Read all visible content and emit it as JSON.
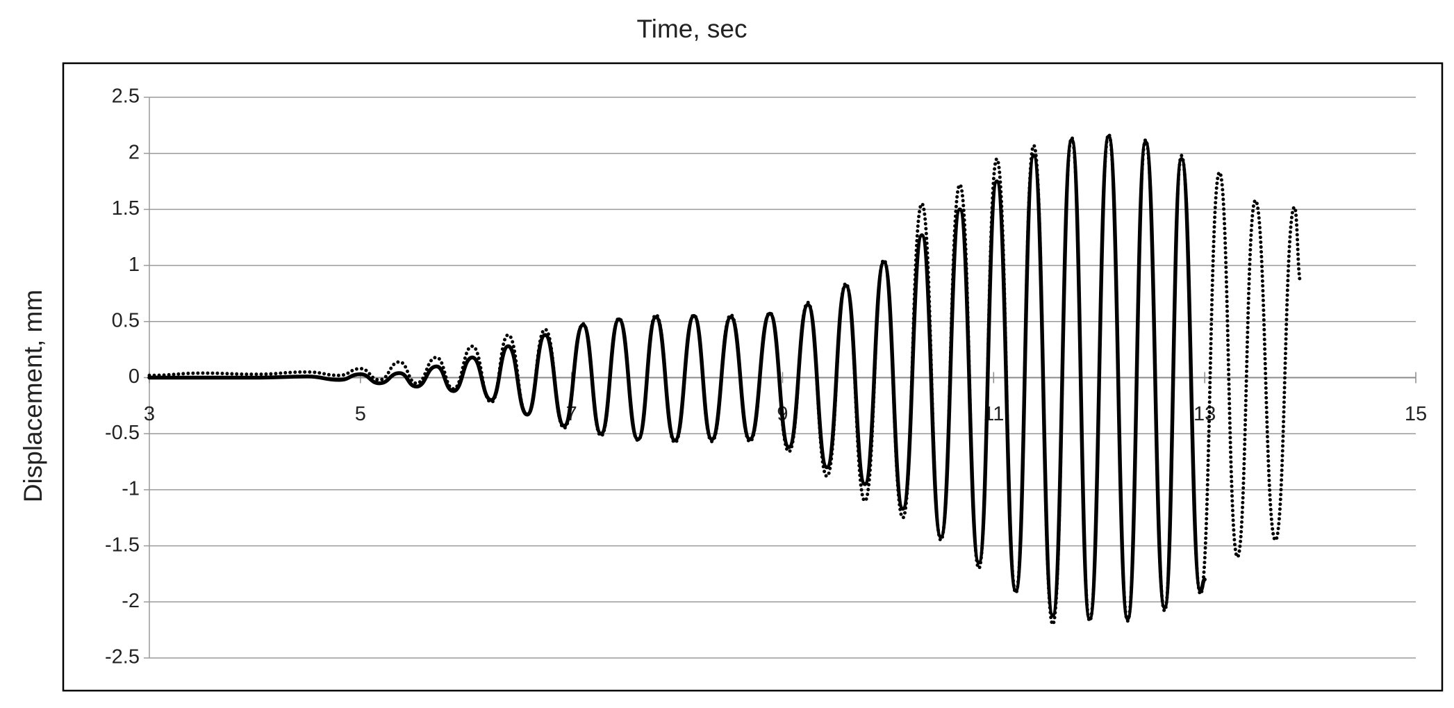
{
  "chart_data": {
    "type": "line",
    "title": "Time, sec",
    "y_label": "Displacement, mm",
    "xlim": [
      3,
      15
    ],
    "xticks": [
      3,
      5,
      7,
      9,
      11,
      13,
      15
    ],
    "ylim": [
      -2.5,
      2.5
    ],
    "yticks": [
      -2.5,
      -2,
      -1.5,
      -1,
      -0.5,
      0,
      0.5,
      1,
      1.5,
      2,
      2.5
    ],
    "grid": true,
    "series": [
      {
        "style": "solid",
        "color": "#000000",
        "x": [
          3.0,
          3.5,
          4.0,
          4.5,
          4.8,
          5.0,
          5.18,
          5.37,
          5.53,
          5.72,
          5.88,
          6.06,
          6.24,
          6.4,
          6.58,
          6.75,
          6.93,
          7.11,
          7.28,
          7.45,
          7.63,
          7.8,
          7.98,
          8.16,
          8.33,
          8.51,
          8.69,
          8.88,
          9.06,
          9.24,
          9.42,
          9.6,
          9.78,
          9.96,
          10.14,
          10.32,
          10.5,
          10.68,
          10.86,
          11.03,
          11.21,
          11.38,
          11.56,
          11.74,
          11.91,
          12.09,
          12.27,
          12.44,
          12.62,
          12.78,
          12.96,
          13.0
        ],
        "values": [
          0,
          0,
          0,
          0.01,
          -0.02,
          0.03,
          -0.05,
          0.04,
          -0.08,
          0.1,
          -0.12,
          0.18,
          -0.2,
          0.28,
          -0.33,
          0.38,
          -0.43,
          0.47,
          -0.5,
          0.52,
          -0.55,
          0.54,
          -0.56,
          0.55,
          -0.55,
          0.54,
          -0.55,
          0.57,
          -0.62,
          0.65,
          -0.8,
          0.82,
          -0.95,
          1.03,
          -1.17,
          1.27,
          -1.42,
          1.5,
          -1.65,
          1.75,
          -1.9,
          1.98,
          -2.12,
          2.12,
          -2.15,
          2.15,
          -2.15,
          2.1,
          -2.05,
          1.95,
          -1.9,
          -1.8
        ]
      },
      {
        "style": "dotted",
        "color": "#000000",
        "x": [
          3.0,
          3.5,
          4.0,
          4.5,
          4.8,
          5.0,
          5.18,
          5.37,
          5.53,
          5.72,
          5.88,
          6.06,
          6.24,
          6.4,
          6.58,
          6.75,
          6.93,
          7.11,
          7.28,
          7.45,
          7.63,
          7.8,
          7.98,
          8.16,
          8.33,
          8.51,
          8.69,
          8.88,
          9.06,
          9.24,
          9.42,
          9.6,
          9.78,
          9.96,
          10.14,
          10.32,
          10.5,
          10.68,
          10.86,
          11.03,
          11.21,
          11.38,
          11.56,
          11.74,
          11.91,
          12.09,
          12.27,
          12.44,
          12.62,
          12.78,
          12.96,
          13.14,
          13.31,
          13.48,
          13.67,
          13.85,
          13.91
        ],
        "values": [
          0.02,
          0.04,
          0.03,
          0.05,
          0.02,
          0.08,
          -0.02,
          0.14,
          -0.05,
          0.18,
          -0.1,
          0.28,
          -0.22,
          0.38,
          -0.33,
          0.43,
          -0.45,
          0.48,
          -0.52,
          0.53,
          -0.56,
          0.56,
          -0.58,
          0.56,
          -0.57,
          0.56,
          -0.57,
          0.58,
          -0.66,
          0.67,
          -0.88,
          0.84,
          -1.1,
          1.05,
          -1.25,
          1.55,
          -1.45,
          1.72,
          -1.7,
          1.95,
          -1.92,
          2.07,
          -2.2,
          2.14,
          -2.17,
          2.17,
          -2.17,
          2.12,
          -2.08,
          1.98,
          -1.93,
          1.83,
          -1.6,
          1.58,
          -1.45,
          1.52,
          0.85
        ]
      }
    ]
  }
}
